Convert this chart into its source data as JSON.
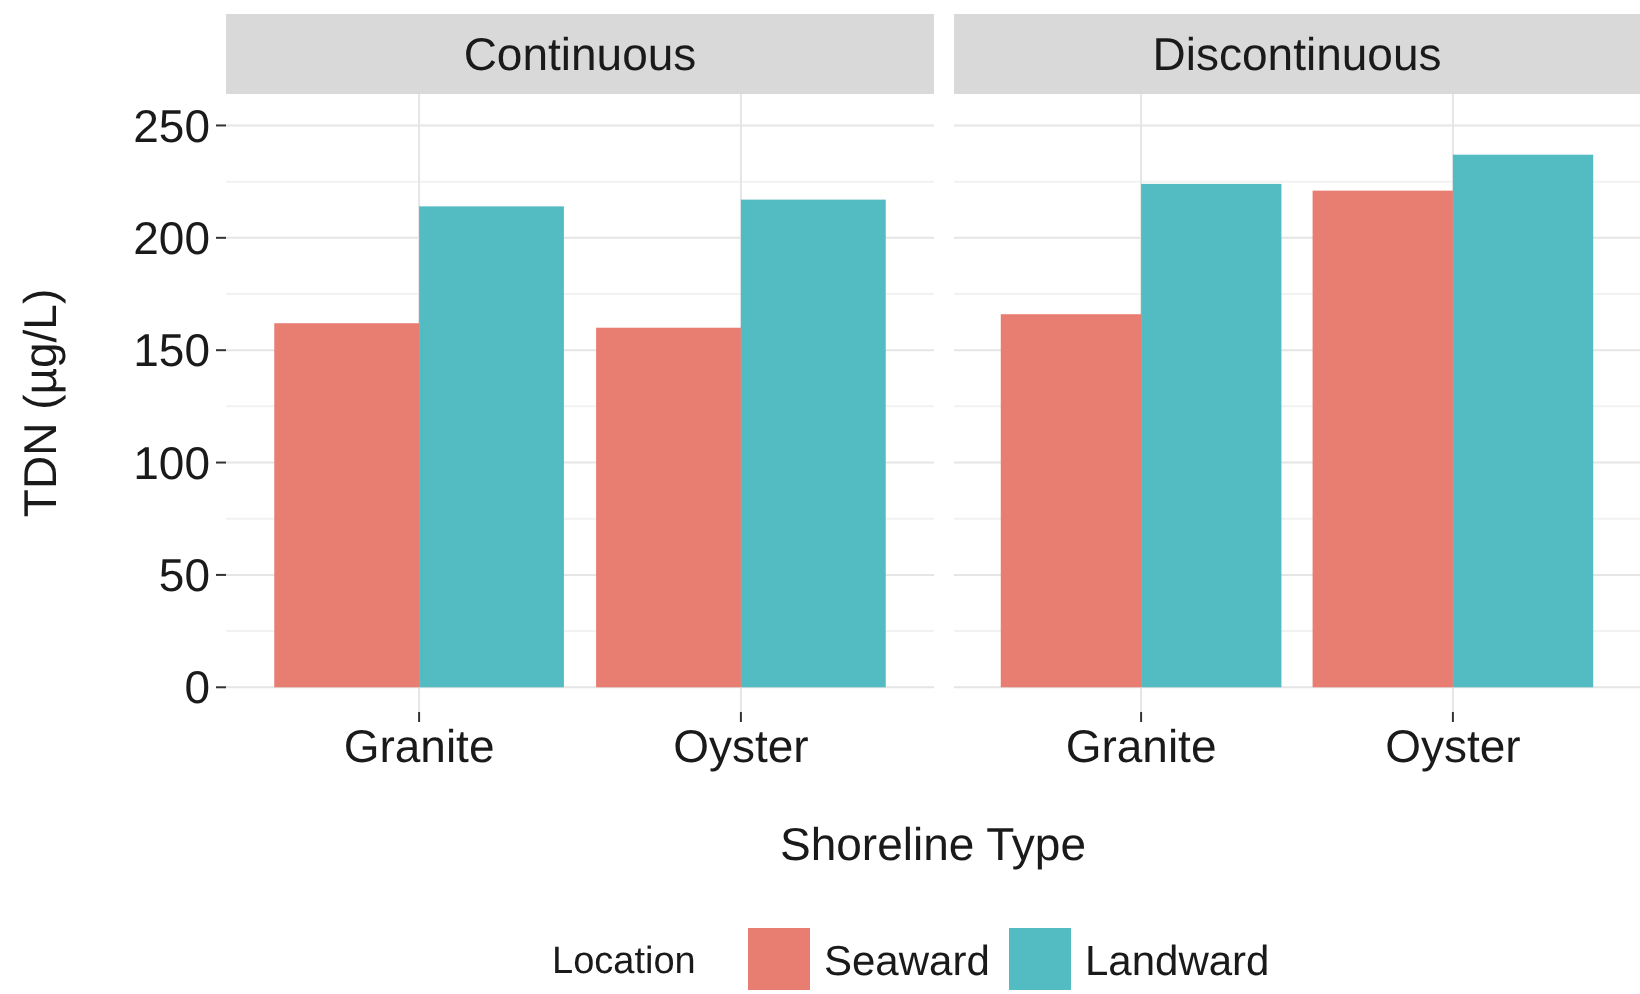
{
  "chart_data": [
    {
      "type": "bar",
      "title": "Continuous",
      "xlabel": "Shoreline Type",
      "ylabel": "TDN (µg/L)",
      "legend_title": "Location",
      "legend": "bottom",
      "grid": true,
      "categories": [
        "Granite",
        "Oyster"
      ],
      "ylim": [
        -11,
        264
      ],
      "yticks": [
        0,
        50,
        100,
        150,
        200,
        250
      ],
      "series": [
        {
          "name": "Seaward",
          "color": "#e87d72",
          "values": [
            162,
            160
          ]
        },
        {
          "name": "Landward",
          "color": "#53bcc2",
          "values": [
            214,
            217
          ]
        }
      ]
    },
    {
      "type": "bar",
      "title": "Discontinuous",
      "grid": true,
      "tick_labels": "x",
      "categories": [
        "Granite",
        "Oyster"
      ],
      "ylim": [
        -11,
        264
      ],
      "yticks": [
        0,
        50,
        100,
        150,
        200,
        250
      ],
      "series": [
        {
          "color": "#e87d72",
          "values": [
            166,
            221
          ]
        },
        {
          "color": "#53bcc2",
          "values": [
            224,
            237
          ]
        }
      ]
    }
  ]
}
